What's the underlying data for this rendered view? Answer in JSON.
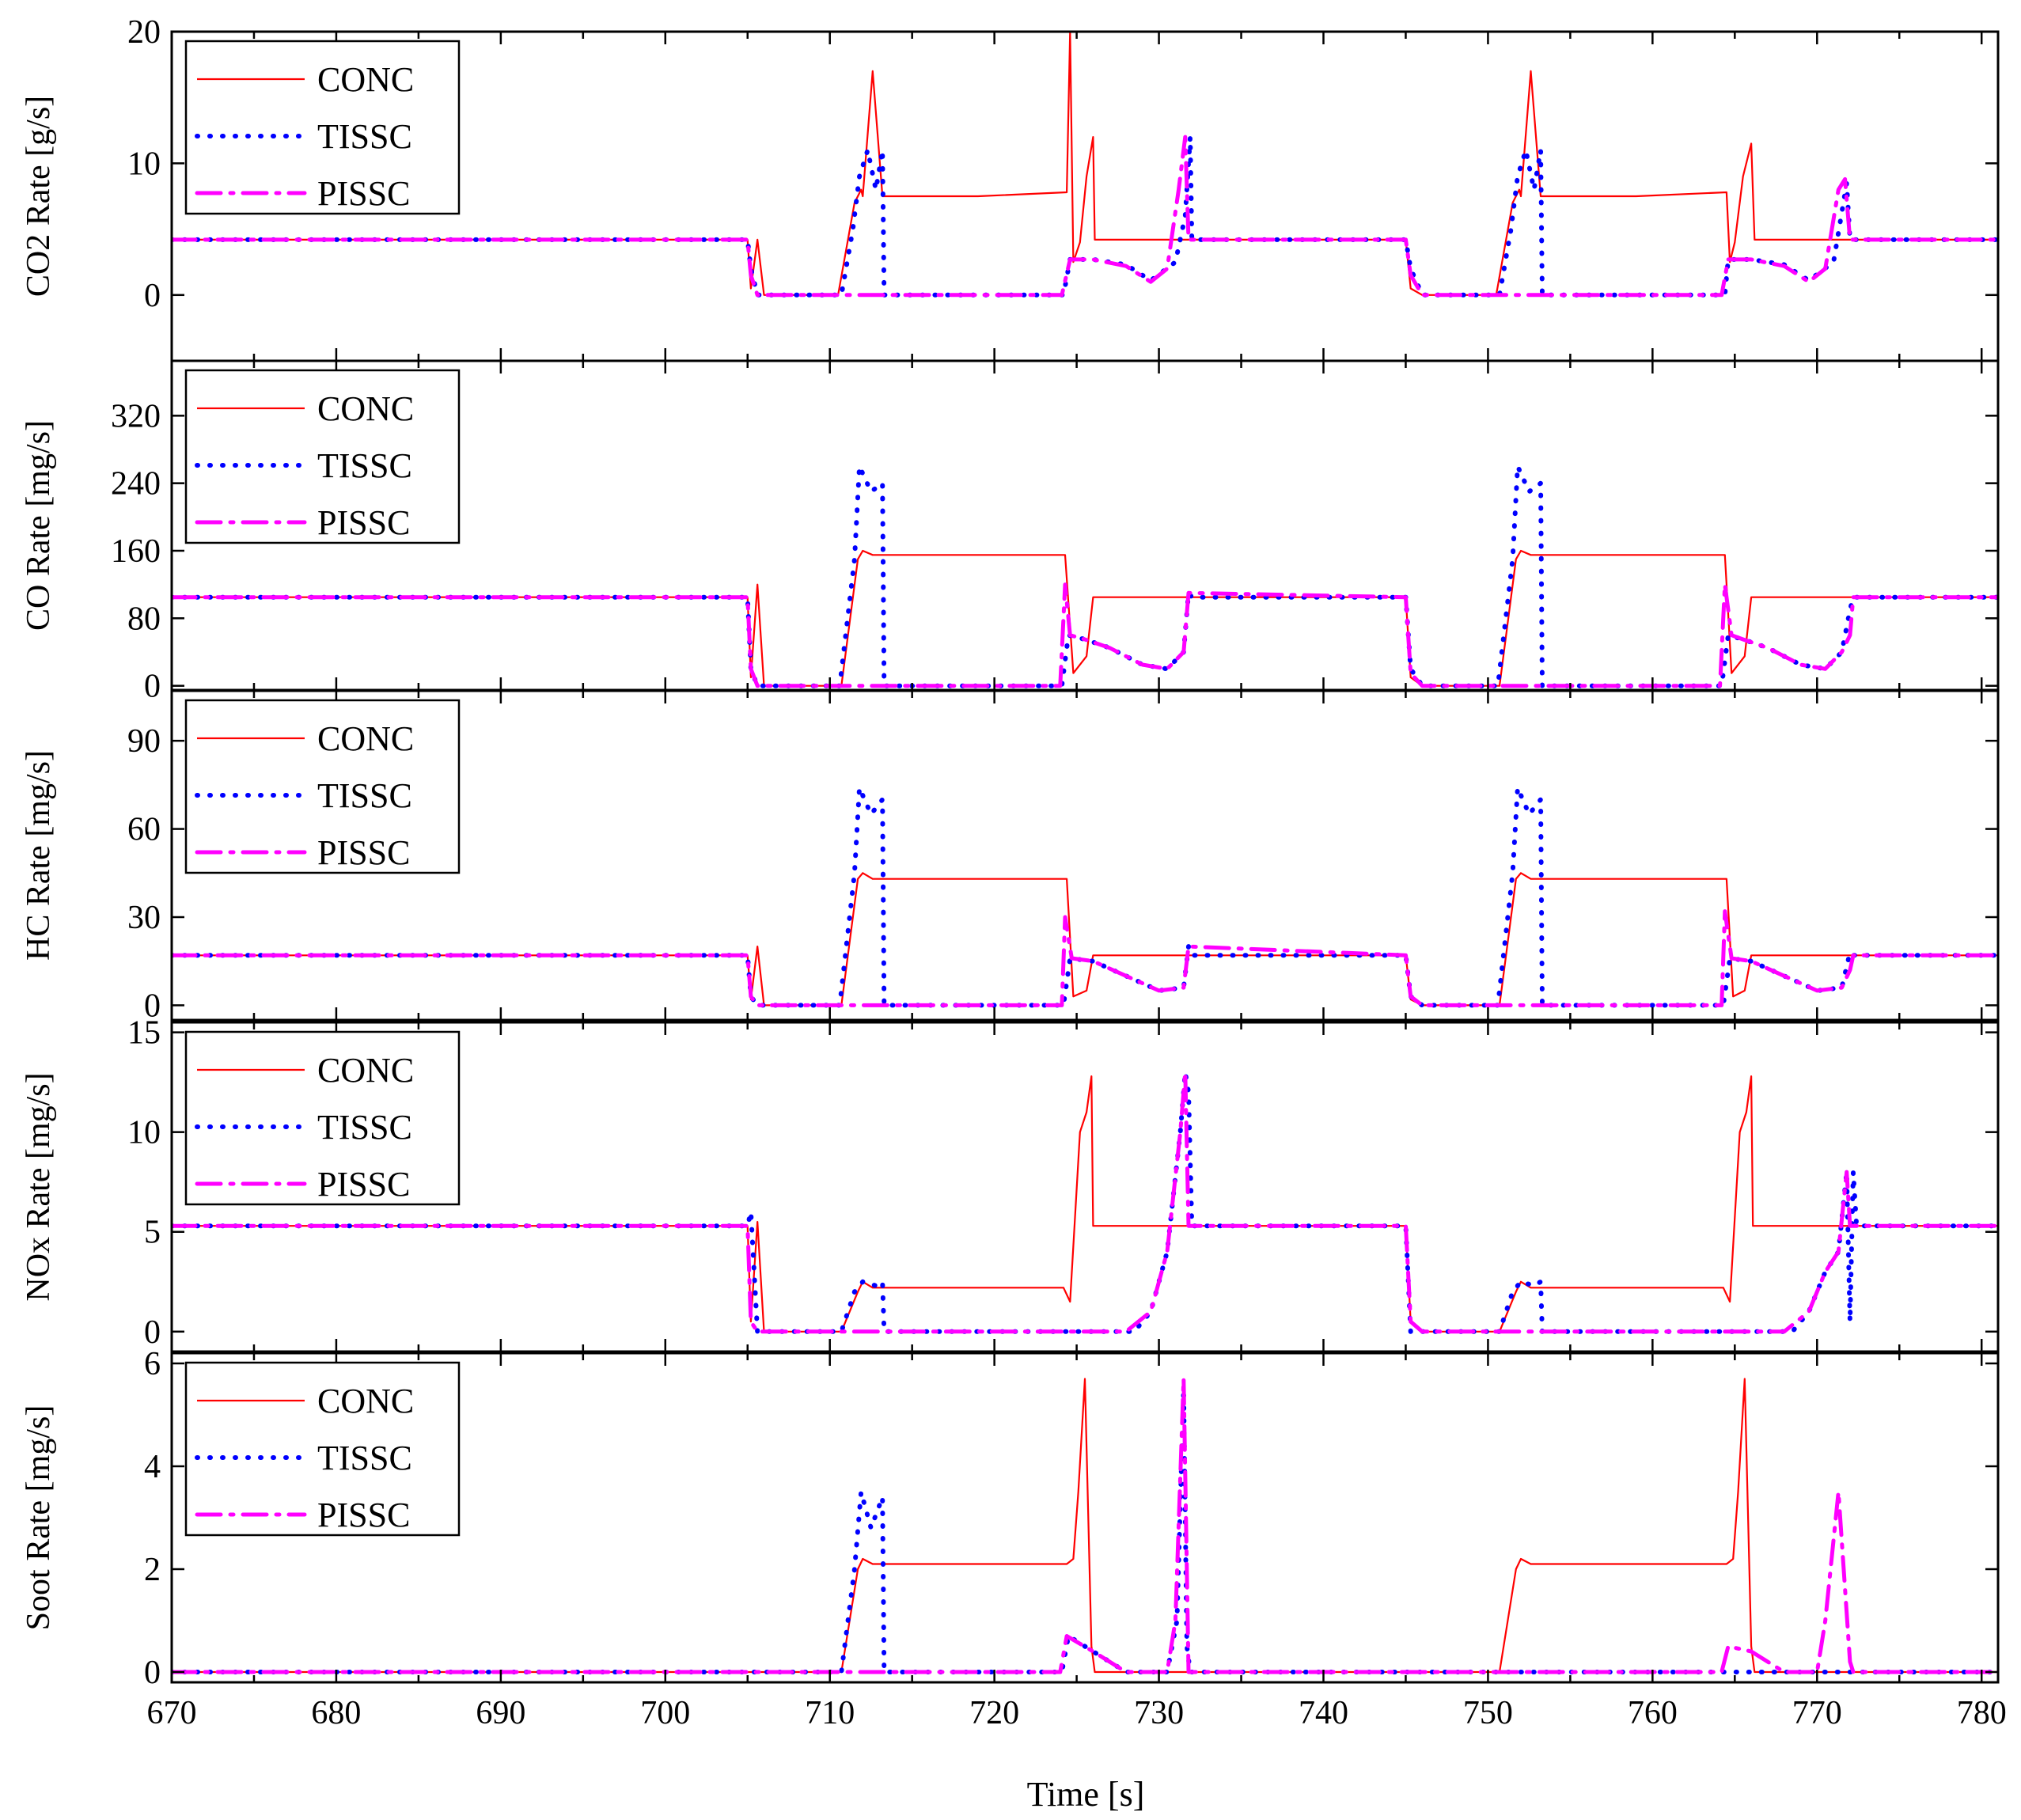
{
  "figure": {
    "xlabel": "Time [s]",
    "x_range": [
      670,
      781
    ],
    "x_ticks": [
      670,
      680,
      690,
      700,
      710,
      720,
      730,
      740,
      750,
      760,
      770,
      780
    ],
    "colors": {
      "CONC": "#ff0000",
      "TISSC": "#0000ff",
      "PISSC": "#ff00ff"
    }
  },
  "chart_data": [
    {
      "type": "line",
      "ylabel": "CO2 Rate [g/s]",
      "ylim": [
        -5,
        20
      ],
      "y_ticks": [
        0,
        10,
        20
      ],
      "legend": [
        "CONC",
        "TISSC",
        "PISSC"
      ],
      "legend_placement": "top-left",
      "series": [
        {
          "name": "CONC",
          "x": [
            670,
            705,
            705.2,
            705.6,
            706,
            710.5,
            711.5,
            711.9,
            712,
            712.6,
            713.2,
            719,
            724.4,
            724.6,
            724.8,
            725.2,
            725.6,
            726,
            726.1,
            745,
            745.3,
            746,
            750.5,
            751.5,
            751.9,
            752,
            752.6,
            753.2,
            759,
            764.5,
            764.7,
            765,
            765.5,
            766,
            766.2,
            781
          ],
          "y": [
            4.2,
            4.2,
            0.5,
            4.2,
            0,
            0,
            7,
            8,
            7.5,
            17,
            7.5,
            7.5,
            7.8,
            20,
            2.5,
            4,
            9,
            12,
            4.2,
            4.2,
            0.5,
            0,
            0,
            7,
            8,
            7.5,
            17,
            7.5,
            7.5,
            7.8,
            2.5,
            4,
            9,
            11.5,
            4.2,
            4.2
          ]
        },
        {
          "name": "TISSC",
          "x": [
            670,
            705,
            705.2,
            705.6,
            710.7,
            711.4,
            711.8,
            712.3,
            712.8,
            713.2,
            713.3,
            724.2,
            724.6,
            726,
            728,
            729.5,
            731,
            731.6,
            731.9,
            732,
            745,
            745.3,
            746,
            750.7,
            751.4,
            751.8,
            752.3,
            752.8,
            753.2,
            753.3,
            764.4,
            764.6,
            766,
            768,
            769.5,
            771,
            771.8,
            772,
            781
          ],
          "y": [
            4.2,
            4.2,
            2,
            0,
            0,
            5,
            9,
            11,
            8,
            11,
            0,
            0,
            2.7,
            2.7,
            2.3,
            1.1,
            2.5,
            6,
            12,
            4.2,
            4.2,
            2,
            0,
            0,
            5,
            9,
            11,
            8,
            11,
            0,
            0,
            2.7,
            2.7,
            2.3,
            1.1,
            2.5,
            8.5,
            4.2,
            4.2
          ]
        },
        {
          "name": "PISSC",
          "x": [
            670,
            705,
            705.2,
            705.6,
            724.1,
            724.6,
            726,
            728,
            729.5,
            730.5,
            731.2,
            731.6,
            731.8,
            745,
            745.3,
            746,
            764.2,
            764.6,
            766,
            768,
            769.5,
            770.5,
            771.3,
            771.7,
            772,
            781
          ],
          "y": [
            4.2,
            4.2,
            1.5,
            0,
            0,
            2.7,
            2.7,
            2.2,
            1,
            2,
            8,
            12,
            4.2,
            4.2,
            1.5,
            0,
            0,
            2.7,
            2.7,
            2.2,
            1,
            2,
            8,
            8.8,
            4.2,
            4.2
          ]
        }
      ]
    },
    {
      "type": "line",
      "ylabel": "CO Rate [mg/s]",
      "ylim": [
        -5,
        385
      ],
      "y_ticks": [
        0,
        80,
        160,
        240,
        320
      ],
      "legend": [
        "CONC",
        "TISSC",
        "PISSC"
      ],
      "legend_placement": "top-left",
      "series": [
        {
          "name": "CONC",
          "x": [
            670,
            705,
            705.2,
            705.6,
            706,
            710.7,
            711.7,
            712,
            712.6,
            724.3,
            724.8,
            725.6,
            726,
            745,
            745.3,
            746,
            750.7,
            751.7,
            752,
            752.6,
            764.4,
            764.8,
            765.6,
            766,
            781
          ],
          "y": [
            105,
            105,
            10,
            120,
            0,
            0,
            150,
            160,
            155,
            155,
            15,
            35,
            105,
            105,
            10,
            0,
            0,
            150,
            160,
            155,
            155,
            15,
            35,
            105,
            105
          ]
        },
        {
          "name": "TISSC",
          "x": [
            670,
            705,
            705.2,
            705.6,
            710.6,
            711.5,
            711.8,
            712.5,
            713.2,
            713.3,
            724.1,
            724.5,
            725.5,
            727,
            729,
            730.5,
            731.5,
            731.8,
            732,
            745,
            745.3,
            746,
            750.6,
            751.5,
            751.8,
            752.5,
            753.2,
            753.3,
            764.2,
            764.6,
            765.5,
            767,
            769,
            770.5,
            771.5,
            772,
            772.2,
            781
          ],
          "y": [
            105,
            105,
            20,
            0,
            0,
            150,
            260,
            230,
            240,
            0,
            0,
            60,
            55,
            45,
            25,
            20,
            40,
            110,
            105,
            105,
            20,
            0,
            0,
            150,
            260,
            230,
            240,
            0,
            0,
            60,
            55,
            45,
            25,
            20,
            40,
            90,
            105,
            105
          ]
        },
        {
          "name": "PISSC",
          "x": [
            670,
            705,
            705.2,
            705.6,
            724,
            724.3,
            724.6,
            725.5,
            727,
            729,
            730.5,
            731.5,
            731.8,
            745,
            745.3,
            746,
            764.1,
            764.4,
            764.8,
            765.5,
            767,
            769,
            770.5,
            771.5,
            772,
            772.2,
            781
          ],
          "y": [
            105,
            105,
            20,
            0,
            0,
            120,
            60,
            55,
            45,
            25,
            20,
            40,
            110,
            105,
            15,
            0,
            0,
            120,
            60,
            55,
            45,
            25,
            20,
            40,
            60,
            105,
            105
          ]
        }
      ]
    },
    {
      "type": "line",
      "ylabel": "HC Rate [mg/s]",
      "ylim": [
        -5,
        107
      ],
      "y_ticks": [
        0,
        30,
        60,
        90
      ],
      "legend": [
        "CONC",
        "TISSC",
        "PISSC"
      ],
      "legend_placement": "top-left",
      "series": [
        {
          "name": "CONC",
          "x": [
            670,
            705,
            705.2,
            705.6,
            706,
            710.7,
            711.7,
            712,
            712.6,
            724.4,
            724.8,
            725.6,
            726,
            745,
            745.3,
            746,
            750.7,
            751.7,
            752,
            752.6,
            764.5,
            764.9,
            765.6,
            766,
            781
          ],
          "y": [
            17,
            17,
            2,
            20,
            0,
            0,
            43,
            45,
            43,
            43,
            3,
            5,
            17,
            17,
            2,
            0,
            0,
            43,
            45,
            43,
            43,
            3,
            5,
            17,
            17
          ]
        },
        {
          "name": "TISSC",
          "x": [
            670,
            705,
            705.2,
            705.6,
            710.6,
            711.5,
            711.8,
            712.5,
            713.2,
            713.3,
            724.2,
            724.6,
            726,
            728,
            730,
            731.5,
            731.8,
            732,
            745,
            745.3,
            746,
            750.6,
            751.5,
            751.8,
            752.5,
            753.2,
            753.3,
            764.3,
            764.7,
            766,
            768,
            770,
            771.5,
            772,
            772.2,
            781
          ],
          "y": [
            17,
            17,
            3,
            0,
            0,
            45,
            74,
            65,
            70,
            0,
            0,
            16,
            15,
            10,
            5,
            6,
            20,
            17,
            17,
            3,
            0,
            0,
            45,
            74,
            65,
            70,
            0,
            0,
            16,
            15,
            10,
            5,
            6,
            18,
            17,
            17
          ]
        },
        {
          "name": "PISSC",
          "x": [
            670,
            705,
            705.2,
            705.6,
            724.1,
            724.3,
            724.7,
            726,
            728,
            730,
            731.5,
            731.8,
            745,
            745.3,
            746,
            764.2,
            764.4,
            764.8,
            766,
            768,
            770,
            771.5,
            772,
            772.2,
            781
          ],
          "y": [
            17,
            17,
            3,
            0,
            0,
            30,
            16,
            15,
            10,
            5,
            6,
            20,
            17,
            3,
            0,
            0,
            32,
            16,
            15,
            10,
            5,
            6,
            12,
            17,
            17
          ]
        }
      ]
    },
    {
      "type": "line",
      "ylabel": "NOx Rate [mg/s]",
      "ylim": [
        -1,
        15.5
      ],
      "y_ticks": [
        0,
        5,
        10,
        15
      ],
      "legend": [
        "CONC",
        "TISSC",
        "PISSC"
      ],
      "legend_placement": "top-left",
      "series": [
        {
          "name": "CONC",
          "x": [
            670,
            705,
            705.2,
            705.6,
            706,
            710.7,
            711.7,
            712,
            712.6,
            719,
            724.2,
            724.6,
            725.2,
            725.6,
            725.9,
            726,
            745,
            745.3,
            746,
            750.7,
            751.7,
            752,
            752.6,
            759,
            764.3,
            764.7,
            765.3,
            765.7,
            766,
            766.1,
            781
          ],
          "y": [
            5.3,
            5.3,
            0.5,
            5.5,
            0,
            0,
            2,
            2.5,
            2.2,
            2.2,
            2.2,
            1.5,
            10,
            11,
            12.8,
            5.3,
            5.3,
            0.5,
            0,
            0,
            2,
            2.5,
            2.2,
            2.2,
            2.2,
            1.5,
            10,
            11,
            12.8,
            5.3,
            5.3
          ]
        },
        {
          "name": "TISSC",
          "x": [
            670,
            705,
            705.2,
            705.6,
            710.7,
            711.5,
            712,
            712.8,
            713.2,
            713.3,
            728.5,
            729.5,
            730.5,
            731.3,
            731.6,
            731.8,
            732,
            745,
            745.3,
            746,
            750.7,
            751.5,
            752,
            752.8,
            753.2,
            753.3,
            768.5,
            769.5,
            770.5,
            771.3,
            771.8,
            772,
            772.2,
            772.4,
            781
          ],
          "y": [
            5.3,
            5.3,
            6,
            0,
            0,
            2,
            2.5,
            2.3,
            2.5,
            0,
            0,
            1,
            4,
            10,
            13,
            12,
            5.3,
            5.3,
            0,
            0,
            0,
            2,
            2.5,
            2.3,
            2.5,
            0,
            0,
            1,
            3,
            4,
            8,
            0.5,
            8,
            5.3,
            5.3
          ]
        },
        {
          "name": "PISSC",
          "x": [
            670,
            705,
            705.2,
            705.6,
            728,
            729.5,
            730.5,
            731.3,
            731.6,
            731.8,
            745,
            745.3,
            746,
            768,
            769.5,
            770.5,
            771.3,
            771.8,
            772,
            781
          ],
          "y": [
            5.3,
            5.3,
            0.5,
            0,
            0,
            1,
            4,
            10,
            13,
            5.3,
            5.3,
            0.5,
            0,
            0,
            1,
            3,
            4,
            8,
            5.3,
            5.3
          ]
        }
      ]
    },
    {
      "type": "line",
      "ylabel": "Soot Rate [mg/s]",
      "ylim": [
        -0.2,
        6.2
      ],
      "y_ticks": [
        0,
        2,
        4,
        6
      ],
      "legend": [
        "CONC",
        "TISSC",
        "PISSC"
      ],
      "legend_placement": "top-left",
      "series": [
        {
          "name": "CONC",
          "x": [
            670,
            710.7,
            711.7,
            712,
            712.6,
            724.4,
            724.8,
            725.1,
            725.5,
            725.9,
            726.1,
            750.7,
            751.7,
            752,
            752.6,
            764.5,
            764.9,
            765.2,
            765.6,
            766,
            766.2,
            781
          ],
          "y": [
            0,
            0,
            2,
            2.2,
            2.1,
            2.1,
            2.2,
            3.5,
            5.7,
            0.5,
            0,
            0,
            2,
            2.2,
            2.1,
            2.1,
            2.2,
            3.5,
            5.7,
            0.5,
            0,
            0
          ]
        },
        {
          "name": "TISSC",
          "x": [
            670,
            710.7,
            711.5,
            711.9,
            712.5,
            713.2,
            713.3,
            724.1,
            724.5,
            726,
            728,
            729,
            730.5,
            731.1,
            731.5,
            731.7,
            731.9,
            781
          ],
          "y": [
            0,
            0,
            2,
            3.5,
            2.8,
            3.4,
            0,
            0,
            0.7,
            0.4,
            0,
            0,
            0,
            1,
            5.5,
            0.5,
            0,
            0
          ]
        },
        {
          "name": "PISSC",
          "x": [
            670,
            724,
            724.4,
            726,
            728,
            730.5,
            731,
            731.5,
            731.8,
            764.2,
            764.6,
            766,
            768,
            770,
            770.5,
            771.3,
            772,
            772.2,
            781
          ],
          "y": [
            0,
            0,
            0.7,
            0.4,
            0,
            0,
            1,
            5.7,
            0,
            0,
            0.5,
            0.4,
            0,
            0,
            1,
            3.5,
            0.2,
            0,
            0
          ]
        }
      ]
    }
  ]
}
